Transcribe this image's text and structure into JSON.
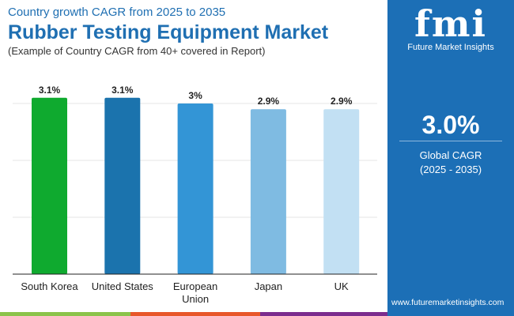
{
  "header": {
    "supertitle": "Country growth CAGR from 2025 to 2035",
    "title": "Rubber Testing Equipment Market",
    "subtitle": "(Example of Country CAGR from 40+ covered in Report)"
  },
  "panel": {
    "logo_text": "fmi",
    "brand": "Future Market Insights",
    "value": "3.0%",
    "label": "Global CAGR",
    "period": "(2025 - 2035)",
    "url": "www.futuremarketinsights.com",
    "color": "#1c6fb6"
  },
  "chart_data": {
    "type": "bar",
    "categories": [
      "South Korea",
      "United States",
      "European Union",
      "Japan",
      "UK"
    ],
    "values": [
      3.1,
      3.1,
      3.0,
      2.9,
      2.9
    ],
    "labels": [
      "3.1%",
      "3.1%",
      "3%",
      "2.9%",
      "2.9%"
    ],
    "colors": [
      "#0faa2f",
      "#1b73ad",
      "#3395d6",
      "#7fbbe2",
      "#c2e0f3"
    ],
    "ylim": [
      0,
      3.1
    ],
    "grid": true,
    "title": "",
    "xlabel": "",
    "ylabel": ""
  }
}
